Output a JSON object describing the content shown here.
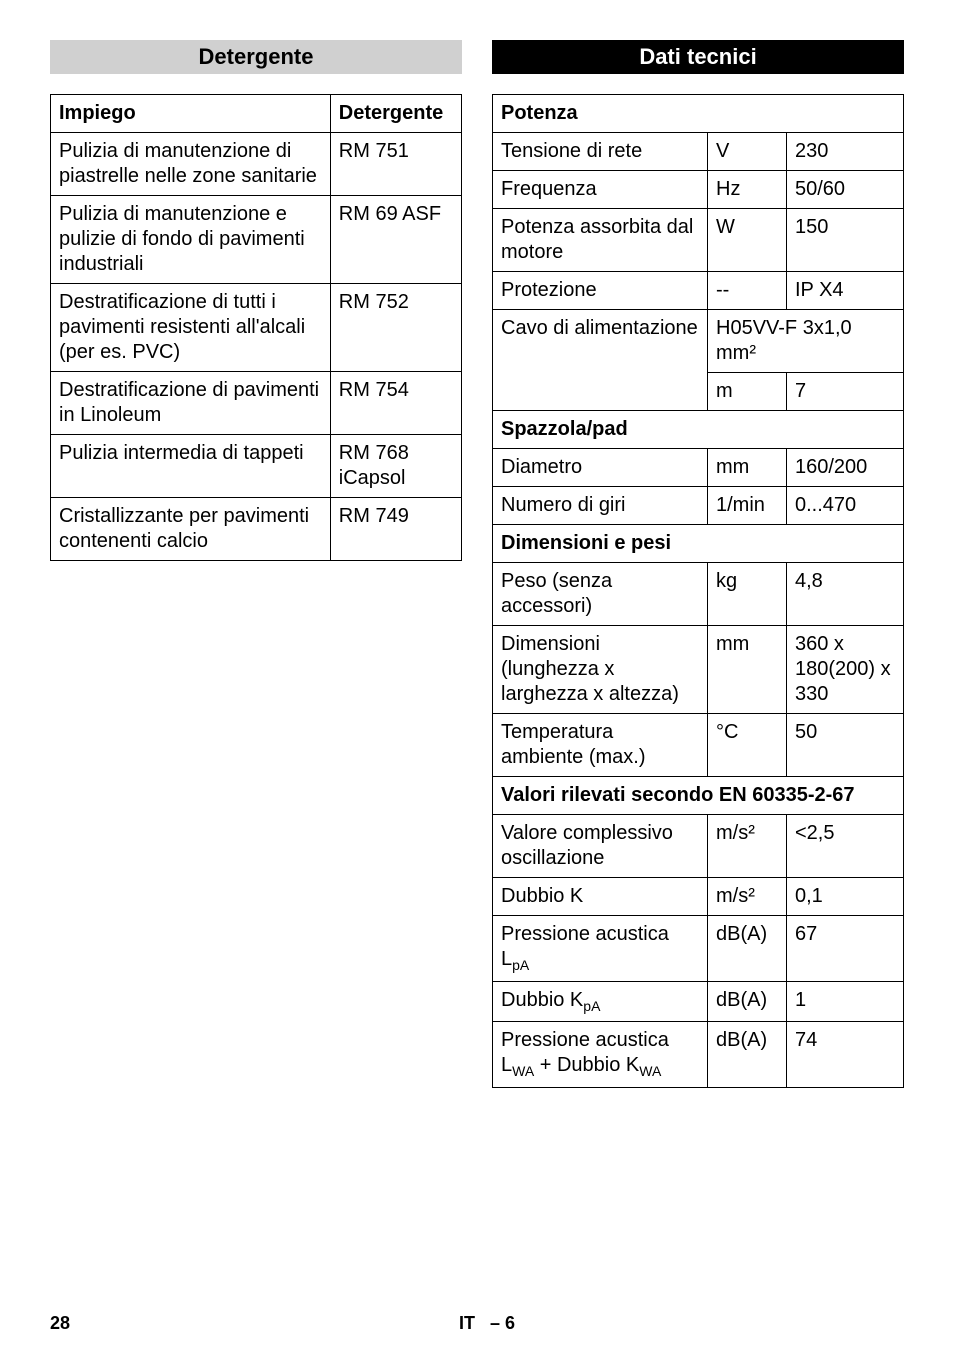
{
  "left": {
    "title": "Detergente",
    "table": {
      "headers": [
        "Impiego",
        "Detergente"
      ],
      "rows": [
        [
          "Pulizia di manutenzione di piastrelle nelle zone sanitarie",
          "RM 751"
        ],
        [
          "Pulizia di manutenzione e pulizie di fondo di pavimenti industriali",
          "RM 69 ASF"
        ],
        [
          "Destratificazione di tutti i pavimenti resistenti all'alcali (per es. PVC)",
          "RM 752"
        ],
        [
          "Destratificazione di pavimenti in Linoleum",
          "RM 754"
        ],
        [
          "Pulizia intermedia di tappeti",
          "RM 768 iCapsol"
        ],
        [
          "Cristallizzante per pavimenti contenenti calcio",
          "RM 749"
        ]
      ]
    }
  },
  "right": {
    "title": "Dati tecnici",
    "sections": [
      {
        "heading": "Potenza",
        "rows": [
          {
            "label": "Tensione di rete",
            "unit": "V",
            "value": "230"
          },
          {
            "label": "Frequenza",
            "unit": "Hz",
            "value": "50/60"
          },
          {
            "label": "Potenza assorbita dal motore",
            "unit": "W",
            "value": "150"
          },
          {
            "label": "Protezione",
            "unit": "--",
            "value": "IP X4"
          },
          {
            "label": "Cavo di alimentazione",
            "unit_merged": "H05VV-F 3x1,0 mm²",
            "unit2": "m",
            "value2": "7"
          }
        ]
      },
      {
        "heading": "Spazzola/pad",
        "rows": [
          {
            "label": "Diametro",
            "unit": "mm",
            "value": "160/200"
          },
          {
            "label": "Numero di giri",
            "unit": "1/min",
            "value": "0...470"
          }
        ]
      },
      {
        "heading": "Dimensioni e pesi",
        "rows": [
          {
            "label": "Peso (senza accessori)",
            "unit": "kg",
            "value": "4,8"
          },
          {
            "label": "Dimensioni (lunghezza x larghezza x altezza)",
            "unit": "mm",
            "value": "360 x 180(200) x 330"
          },
          {
            "label": "Temperatura ambiente (max.)",
            "unit": "°C",
            "value": "50"
          }
        ]
      },
      {
        "heading": "Valori rilevati secondo EN 60335-2-67",
        "rows": [
          {
            "label": "Valore complessivo oscillazione",
            "unit": "m/s²",
            "value": "<2,5"
          },
          {
            "label": "Dubbio K",
            "unit": "m/s²",
            "value": "0,1"
          },
          {
            "label_html": "Pressione acustica L<sub>pA</sub>",
            "unit": "dB(A)",
            "value": "67"
          },
          {
            "label_html": "Dubbio K<sub>pA</sub>",
            "unit": "dB(A)",
            "value": "1"
          },
          {
            "label_html": "Pressione acustica L<sub>WA</sub> + Dubbio K<sub>WA</sub>",
            "unit": "dB(A)",
            "value": "74"
          }
        ]
      }
    ]
  },
  "footer": {
    "page": "28",
    "lang": "IT",
    "sub": "– 6"
  }
}
